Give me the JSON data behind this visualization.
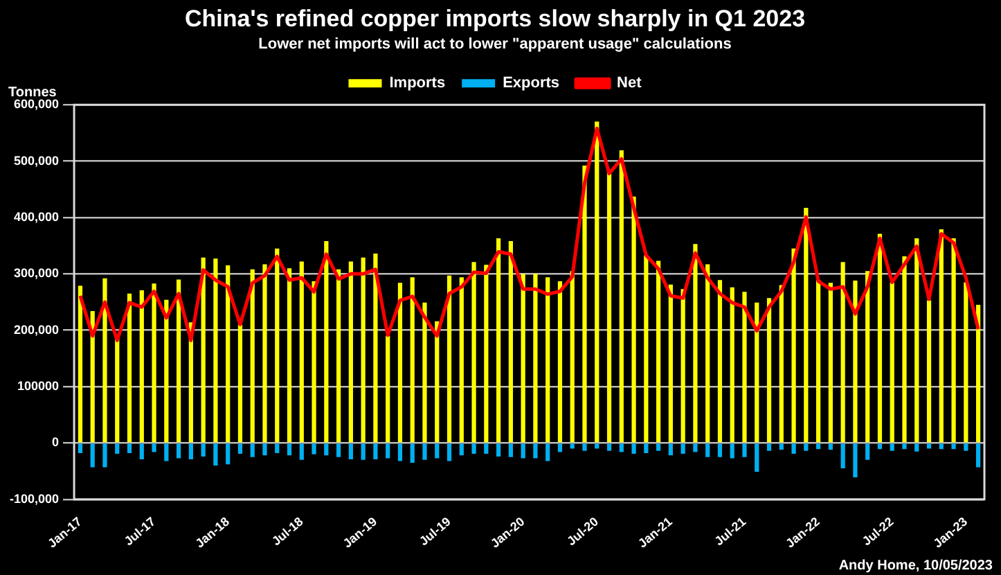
{
  "chart_data": {
    "type": "bar",
    "title": "China's refined copper imports slow sharply in Q1 2023",
    "subtitle": "Lower net imports will act to lower \"apparent usage\" calculations",
    "ylabel": "Tonnes",
    "categories": [
      "Jan-17",
      null,
      null,
      null,
      null,
      null,
      "Jul-17",
      null,
      null,
      null,
      null,
      null,
      "Jan-18",
      null,
      null,
      null,
      null,
      null,
      "Jul-18",
      null,
      null,
      null,
      null,
      null,
      "Jan-19",
      null,
      null,
      null,
      null,
      null,
      "Jul-19",
      null,
      null,
      null,
      null,
      null,
      "Jan-20",
      null,
      null,
      null,
      null,
      null,
      "Jul-20",
      null,
      null,
      null,
      null,
      null,
      "Jan-21",
      null,
      null,
      null,
      null,
      null,
      "Jul-21",
      null,
      null,
      null,
      null,
      null,
      "Jan-22",
      null,
      null,
      null,
      null,
      null,
      "Jul-22",
      null,
      null,
      null,
      null,
      null,
      "Jan-23",
      null
    ],
    "series": [
      {
        "name": "Imports",
        "color": "#ffff00",
        "values": [
          279000,
          234000,
          292000,
          186000,
          265000,
          271000,
          283000,
          254000,
          290000,
          214000,
          329000,
          327000,
          315000,
          210000,
          308000,
          317000,
          345000,
          310000,
          322000,
          287000,
          358000,
          308000,
          322000,
          329000,
          336000,
          190000,
          284000,
          294000,
          249000,
          216000,
          297000,
          294000,
          321000,
          316000,
          363000,
          358000,
          300000,
          300000,
          294000,
          287000,
          305000,
          492000,
          570000,
          484000,
          519000,
          437000,
          333000,
          323000,
          281000,
          273000,
          353000,
          317000,
          289000,
          276000,
          268000,
          249000,
          257000,
          280000,
          345000,
          417000,
          289000,
          284000,
          321000,
          288000,
          305000,
          371000,
          285000,
          331000,
          363000,
          253000,
          379000,
          363000,
          285000,
          245000
        ]
      },
      {
        "name": "Exports",
        "color": "#00b0f0",
        "values": [
          -18000,
          -43000,
          -43000,
          -19000,
          -18000,
          -29000,
          -16000,
          -32000,
          -27000,
          -29000,
          -24000,
          -40000,
          -38000,
          -19000,
          -25000,
          -22000,
          -18000,
          -22000,
          -30000,
          -20000,
          -22000,
          -25000,
          -29000,
          -30000,
          -29000,
          -27000,
          -32000,
          -35000,
          -30000,
          -27000,
          -32000,
          -22000,
          -19000,
          -19000,
          -24000,
          -25000,
          -27000,
          -27000,
          -32000,
          -16000,
          -10000,
          -14000,
          -10000,
          -14000,
          -16000,
          -19000,
          -18000,
          -14000,
          -22000,
          -19000,
          -16000,
          -25000,
          -25000,
          -27000,
          -25000,
          -51000,
          -14000,
          -12000,
          -19000,
          -14000,
          -11000,
          -12000,
          -45000,
          -61000,
          -30000,
          -11000,
          -14000,
          -11000,
          -15000,
          -10000,
          -11000,
          -11000,
          -14000,
          -43000
        ]
      },
      {
        "name": "Net",
        "type": "line",
        "color": "#ff0000",
        "values": [
          261000,
          190000,
          250000,
          182000,
          249000,
          241000,
          269000,
          222000,
          265000,
          182000,
          307000,
          289000,
          277000,
          210000,
          284000,
          297000,
          331000,
          289000,
          293000,
          268000,
          335000,
          291000,
          300000,
          300000,
          308000,
          191000,
          253000,
          260000,
          223000,
          190000,
          265000,
          277000,
          303000,
          301000,
          339000,
          335000,
          273000,
          273000,
          264000,
          269000,
          295000,
          461000,
          558000,
          478000,
          504000,
          417000,
          333000,
          309000,
          261000,
          257000,
          337000,
          293000,
          265000,
          249000,
          241000,
          199000,
          241000,
          269000,
          321000,
          401000,
          287000,
          273000,
          277000,
          229000,
          277000,
          363000,
          285000,
          317000,
          349000,
          255000,
          371000,
          355000,
          293000,
          202000
        ]
      }
    ],
    "stacked": true,
    "ylim": [
      -100000,
      600000
    ],
    "yticks": [
      {
        "value": -100000,
        "label": "-100,000"
      },
      0,
      {
        "value": 100000,
        "label": "100000"
      },
      {
        "value": 200000,
        "label": "200,000"
      },
      {
        "value": 300000,
        "label": "300,000"
      },
      {
        "value": 400000,
        "label": "400,000"
      },
      {
        "value": 500000,
        "label": "500,000"
      },
      {
        "value": 600000,
        "label": "600,000"
      }
    ],
    "grid": "y",
    "legend": "top",
    "marker": "none",
    "line_style": "solid",
    "annotations": [
      "Andy Home, 10/05/2023"
    ]
  }
}
